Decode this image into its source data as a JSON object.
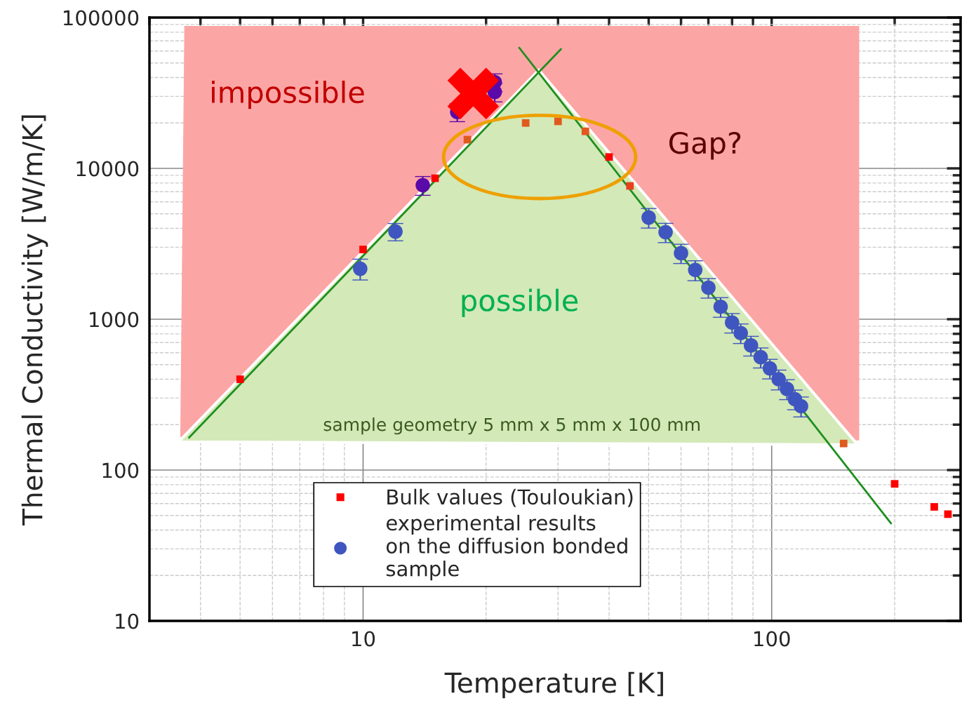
{
  "chart_data": {
    "type": "scatter",
    "xlabel": "Temperature [K]",
    "ylabel": "Thermal Conductivity [W/m/K]",
    "log": "xy",
    "xlim": [
      3,
      290
    ],
    "ylim": [
      10,
      100000
    ],
    "xticks": [
      10,
      100
    ],
    "yticks": [
      10,
      100,
      1000,
      10000,
      100000
    ],
    "grid": true,
    "legend": "bottom",
    "series": [
      {
        "type": "line",
        "color": "#1f8f1f",
        "x": [
          3.75,
          30.5
        ],
        "values": [
          164,
          61800
        ]
      },
      {
        "type": "line",
        "color": "#1f8f1f",
        "x": [
          24.1,
          196
        ],
        "values": [
          63100,
          44.3
        ]
      },
      {
        "name": "Bulk values (Touloukian)",
        "marker": "square",
        "color": "#ff0000",
        "x": [
          5,
          10,
          15,
          18,
          25,
          30,
          35,
          40,
          45,
          150,
          200,
          250,
          270
        ],
        "values": [
          400,
          2900,
          8600,
          15500,
          20000,
          20500,
          17600,
          11900,
          7650,
          150,
          81,
          57,
          51
        ],
        "colors": [
          "#ff0000",
          "#ff0000",
          "#ff0000",
          "#e05a1e",
          "#e05a1e",
          "#e05a1e",
          "#e05a1e",
          "#ff0000",
          "#e8401e",
          "#e05a1e",
          "#ff0000",
          "#ff0000",
          "#ff0000"
        ]
      },
      {
        "name": "experimental results\non the diffusion bonded\nsample",
        "marker": "circle",
        "color": "#3f55bf",
        "x": [
          9.84,
          12,
          14,
          17,
          21,
          21,
          50,
          55,
          60,
          65,
          70,
          75,
          80,
          84,
          89,
          94,
          99,
          104,
          109,
          114,
          118
        ],
        "values": [
          2160,
          3810,
          7730,
          23600,
          37300,
          32100,
          4720,
          3770,
          2740,
          2120,
          1620,
          1210,
          950,
          810,
          670,
          560,
          472,
          400,
          345,
          295,
          265
        ],
        "errors": [
          340,
          500,
          1100,
          3200,
          5000,
          4500,
          700,
          550,
          400,
          320,
          240,
          180,
          140,
          120,
          100,
          85,
          70,
          60,
          52,
          44,
          40
        ],
        "colors": [
          "#3f55bf",
          "#3f55bf",
          "#5a0aa8",
          "#5a0aa8",
          "#5a0aa8",
          "#5a0aa8",
          "#3f55bf",
          "#3f55bf",
          "#3f55bf",
          "#3f55bf",
          "#3f55bf",
          "#3f55bf",
          "#3f55bf",
          "#3f55bf",
          "#3f55bf",
          "#3f55bf",
          "#3f55bf",
          "#3f55bf",
          "#3f55bf",
          "#3f55bf",
          "#3f55bf"
        ]
      },
      {
        "marker": "cross",
        "color": "#ff0000",
        "x": [
          18.6
        ],
        "values": [
          31400
        ]
      }
    ],
    "annotations": [
      "impossible",
      "possible",
      "Gap?",
      "sample geometry 5 mm x 5 mm x 100 mm"
    ]
  }
}
